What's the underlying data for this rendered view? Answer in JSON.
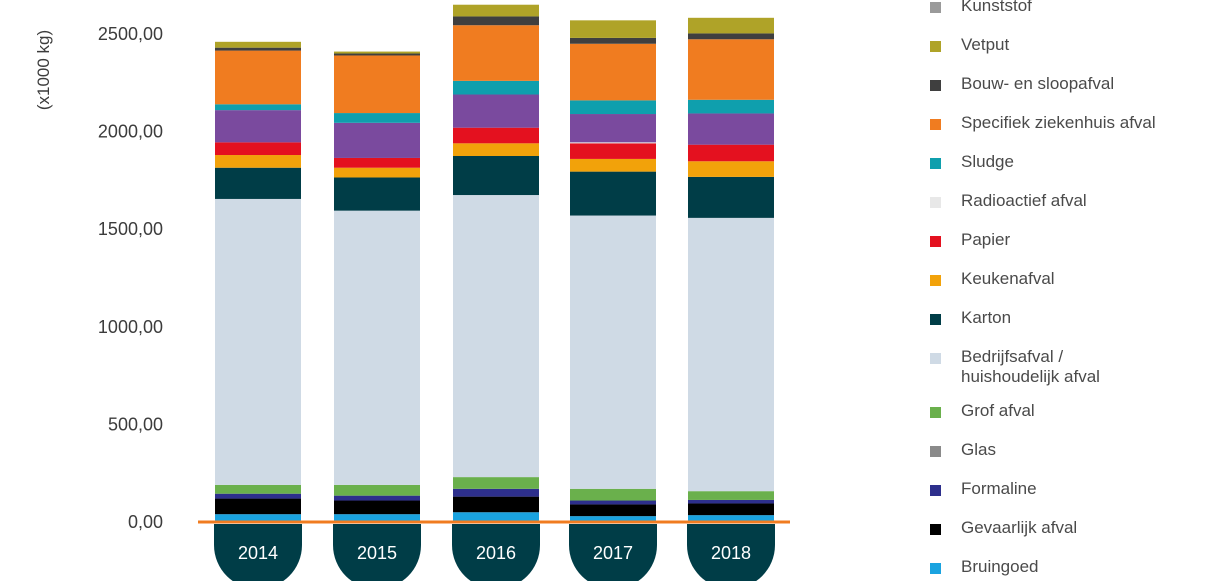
{
  "chart_data": {
    "type": "bar",
    "stacked": true,
    "ylabel": "(x1000 kg)",
    "ylim": [
      0,
      2500
    ],
    "yticks": [
      "0,00",
      "500,00",
      "1000,00",
      "1500,00",
      "2000,00",
      "2500,00"
    ],
    "ytick_values": [
      0,
      500,
      1000,
      1500,
      2000,
      2500
    ],
    "categories": [
      "2014",
      "2015",
      "2016",
      "2017",
      "2018"
    ],
    "legend_position": "right",
    "series": [
      {
        "name": "Bruingoed",
        "color": "#1aa3e0",
        "values": [
          40,
          40,
          50,
          30,
          35
        ]
      },
      {
        "name": "Gevaarlijk afval",
        "color": "#000000",
        "values": [
          80,
          70,
          80,
          60,
          60
        ]
      },
      {
        "name": "Formaline",
        "color": "#2d2f8c",
        "values": [
          25,
          25,
          40,
          20,
          18
        ]
      },
      {
        "name": "Glas",
        "color": "#8a8a8a",
        "values": [
          0,
          0,
          0,
          0,
          0
        ]
      },
      {
        "name": "Grof afval",
        "color": "#6ab04c",
        "values": [
          45,
          55,
          60,
          60,
          45
        ]
      },
      {
        "name": "Bedrijfsafval / huishoudelijk afval",
        "color": "#cfdae5",
        "values": [
          1465,
          1405,
          1445,
          1400,
          1400
        ]
      },
      {
        "name": "Karton",
        "color": "#003d47",
        "values": [
          160,
          170,
          200,
          225,
          210
        ]
      },
      {
        "name": "Keukenafval",
        "color": "#f2a20a",
        "values": [
          65,
          50,
          65,
          65,
          80
        ]
      },
      {
        "name": "Papier",
        "color": "#e4111f",
        "values": [
          65,
          50,
          80,
          80,
          85
        ]
      },
      {
        "name": "Radioactief afval",
        "color": "#e8e8e8",
        "values": [
          0,
          0,
          0,
          5,
          0
        ]
      },
      {
        "name": "Sludge",
        "color": "#7a4a9e",
        "values": [
          165,
          180,
          170,
          145,
          160
        ]
      },
      {
        "name": "Specifiek ziekenhuis afval",
        "color": "#0f9fad",
        "values": [
          30,
          50,
          70,
          70,
          70
        ]
      },
      {
        "name": "Bouw- en sloopafval",
        "color": "#f07c20",
        "values": [
          275,
          295,
          285,
          290,
          310
        ]
      },
      {
        "name": "Vetput",
        "color": "#3f3f3f",
        "values": [
          15,
          10,
          45,
          30,
          30
        ]
      },
      {
        "name": "Kunststof",
        "color": "#afa328",
        "values": [
          30,
          10,
          60,
          90,
          80
        ]
      }
    ]
  },
  "legend": {
    "items": [
      {
        "label": "Kunststof",
        "color": "#9a9a9a"
      },
      {
        "label": "Vetput",
        "color": "#afa328"
      },
      {
        "label": "Bouw- en sloopafval",
        "color": "#3f3f3f"
      },
      {
        "label": "Specifiek ziekenhuis afval",
        "color": "#f07c20"
      },
      {
        "label": "Sludge",
        "color": "#0f9fad"
      },
      {
        "label": "Radioactief afval",
        "color": "#e8e8e8"
      },
      {
        "label": "Papier",
        "color": "#e4111f"
      },
      {
        "label": "Keukenafval",
        "color": "#f2a20a"
      },
      {
        "label": "Karton",
        "color": "#003d47"
      },
      {
        "label": "Bedrijfsafval /\nhuishoudelijk afval",
        "color": "#cfdae5"
      },
      {
        "label": "Grof afval",
        "color": "#6ab04c"
      },
      {
        "label": "Glas",
        "color": "#8a8a8a"
      },
      {
        "label": "Formaline",
        "color": "#2d2f8c"
      },
      {
        "label": "Gevaarlijk afval",
        "color": "#000000"
      },
      {
        "label": "Bruingoed",
        "color": "#1aa3e0"
      }
    ]
  },
  "colors": {
    "baseline": "#f07c20",
    "category_pill": "#003d47",
    "sludge_teal": "#0f9fad",
    "purple_segment": "#7a4a9e"
  }
}
